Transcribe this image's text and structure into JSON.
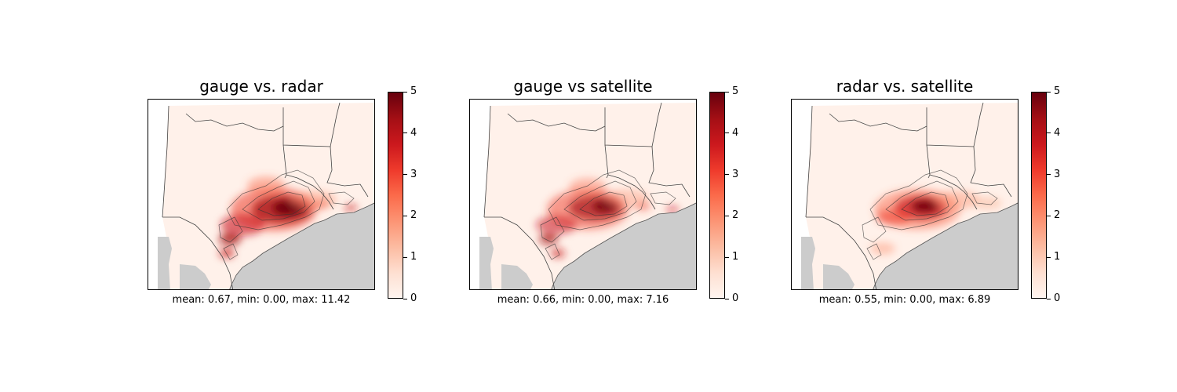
{
  "chart_data": [
    {
      "type": "heatmap",
      "title": "gauge vs. radar",
      "stats_text": "mean: 0.67, min: 0.00, max: 11.42",
      "stats": {
        "mean": 0.67,
        "min": 0.0,
        "max": 11.42
      },
      "colormap": "Reds",
      "colorbar": {
        "range": [
          0,
          5
        ],
        "ticks": [
          "0",
          "1",
          "2",
          "3",
          "4",
          "5"
        ]
      },
      "masked_color": "#cccccc"
    },
    {
      "type": "heatmap",
      "title": "gauge vs satellite",
      "stats_text": "mean: 0.66, min: 0.00, max: 7.16",
      "stats": {
        "mean": 0.66,
        "min": 0.0,
        "max": 7.16
      },
      "colormap": "Reds",
      "colorbar": {
        "range": [
          0,
          5
        ],
        "ticks": [
          "0",
          "1",
          "2",
          "3",
          "4",
          "5"
        ]
      },
      "masked_color": "#cccccc"
    },
    {
      "type": "heatmap",
      "title": "radar vs. satellite",
      "stats_text": "mean: 0.55, min: 0.00, max: 6.89",
      "stats": {
        "mean": 0.55,
        "min": 0.0,
        "max": 6.89
      },
      "colormap": "Reds",
      "colorbar": {
        "range": [
          0,
          5
        ],
        "ticks": [
          "0",
          "1",
          "2",
          "3",
          "4",
          "5"
        ]
      },
      "masked_color": "#cccccc"
    }
  ]
}
